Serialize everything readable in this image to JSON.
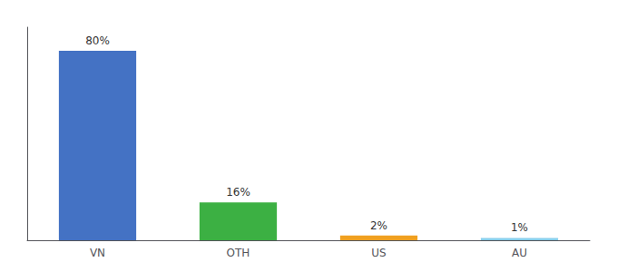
{
  "chart_data": {
    "type": "bar",
    "categories": [
      "VN",
      "OTH",
      "US",
      "AU"
    ],
    "values": [
      80,
      16,
      2,
      1
    ],
    "value_labels": [
      "80%",
      "16%",
      "2%",
      "1%"
    ],
    "data_labels": true,
    "colors": [
      "#4472c4",
      "#3cb043",
      "#f0a020",
      "#87ceeb"
    ],
    "ylim": [
      0,
      90
    ],
    "yticks": [],
    "tick_labels": "x",
    "grid": false
  }
}
